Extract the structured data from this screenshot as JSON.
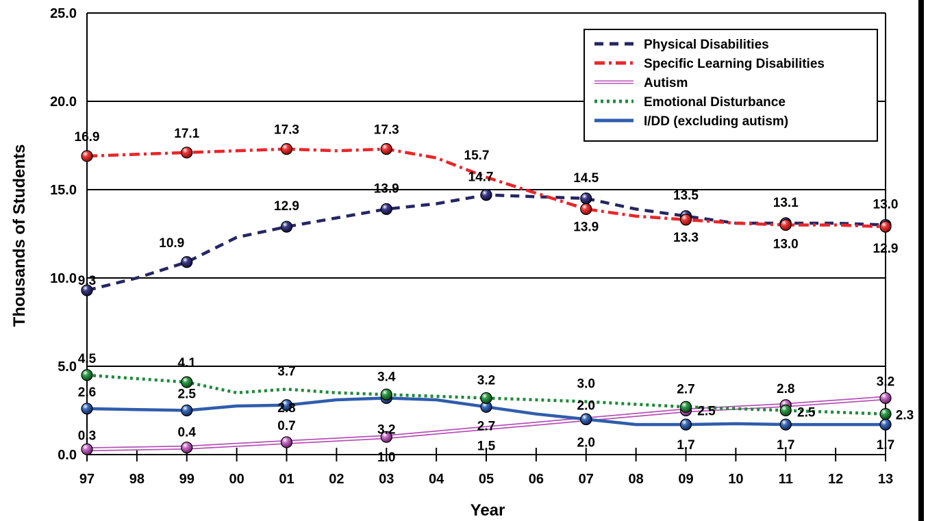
{
  "chart_data": {
    "type": "line",
    "xlabel": "Year",
    "ylabel": "Thousands of Students",
    "ylim": [
      0,
      25
    ],
    "y_ticks": [
      "0.0",
      "5.0",
      "10.0",
      "15.0",
      "20.0",
      "25.0"
    ],
    "categories": [
      "97",
      "98",
      "99",
      "00",
      "01",
      "02",
      "03",
      "04",
      "05",
      "06",
      "07",
      "08",
      "09",
      "10",
      "11",
      "12",
      "13"
    ],
    "grid": "horizontal",
    "legend_position": "top-right",
    "series": [
      {
        "name": "Physical Disabilities",
        "color": "#262662",
        "style": "dashed",
        "values": [
          9.3,
          10.0,
          10.9,
          12.3,
          12.9,
          13.4,
          13.9,
          14.2,
          14.7,
          14.6,
          14.5,
          13.9,
          13.5,
          13.1,
          13.1,
          13.1,
          13.0
        ],
        "markers": [
          {
            "year": "97",
            "value": 9.3,
            "label": "9.3"
          },
          {
            "year": "99",
            "value": 10.9,
            "label": "10.9"
          },
          {
            "year": "01",
            "value": 12.9,
            "label": "12.9"
          },
          {
            "year": "03",
            "value": 13.9,
            "label": "13.9"
          },
          {
            "year": "05",
            "value": 14.7,
            "label": "14.7"
          },
          {
            "year": "07",
            "value": 14.5,
            "label": "14.5"
          },
          {
            "year": "09",
            "value": 13.5,
            "label": "13.5"
          },
          {
            "year": "11",
            "value": 13.1,
            "label": "13.1"
          },
          {
            "year": "13",
            "value": 13.0,
            "label": "13.0"
          }
        ]
      },
      {
        "name": "Specific Learning Disabilities",
        "color": "#e8262a",
        "style": "dash-dot",
        "values": [
          16.9,
          17.0,
          17.1,
          17.2,
          17.3,
          17.2,
          17.3,
          16.8,
          15.7,
          14.8,
          13.9,
          13.5,
          13.3,
          13.1,
          13.0,
          13.0,
          12.9
        ],
        "markers": [
          {
            "year": "97",
            "value": 16.9,
            "label": "16.9"
          },
          {
            "year": "99",
            "value": 17.1,
            "label": "17.1"
          },
          {
            "year": "01",
            "value": 17.3,
            "label": "17.3"
          },
          {
            "year": "03",
            "value": 17.3,
            "label": "17.3"
          },
          {
            "year": "05",
            "value": 15.7,
            "label": "15.7",
            "no_marker": true
          },
          {
            "year": "07",
            "value": 13.9,
            "label": "13.9"
          },
          {
            "year": "09",
            "value": 13.3,
            "label": "13.3"
          },
          {
            "year": "11",
            "value": 13.0,
            "label": "13.0"
          },
          {
            "year": "13",
            "value": 12.9,
            "label": "12.9"
          }
        ]
      },
      {
        "name": "Autism",
        "color": "#b552b5",
        "style": "double",
        "values": [
          0.3,
          0.35,
          0.4,
          0.55,
          0.7,
          0.85,
          1.0,
          1.25,
          1.5,
          1.75,
          2.0,
          2.25,
          2.5,
          2.65,
          2.8,
          3.0,
          3.2
        ],
        "markers": [
          {
            "year": "97",
            "value": 0.3,
            "label": "0.3"
          },
          {
            "year": "99",
            "value": 0.4,
            "label": "0.4"
          },
          {
            "year": "01",
            "value": 0.7,
            "label": "0.7"
          },
          {
            "year": "03",
            "value": 1.0,
            "label": "1.0"
          },
          {
            "year": "05",
            "value": 1.5,
            "label": "1.5",
            "no_marker": true
          },
          {
            "year": "07",
            "value": 2.0,
            "label": "2.0"
          },
          {
            "year": "09",
            "value": 2.5,
            "label": "2.5"
          },
          {
            "year": "11",
            "value": 2.8,
            "label": "2.8"
          },
          {
            "year": "13",
            "value": 3.2,
            "label": "3.2"
          }
        ]
      },
      {
        "name": "Emotional Disturbance",
        "color": "#1e8a3a",
        "style": "dotted",
        "values": [
          4.5,
          4.3,
          4.1,
          3.5,
          3.7,
          3.5,
          3.4,
          3.3,
          3.2,
          3.1,
          3.0,
          2.85,
          2.7,
          2.6,
          2.5,
          2.4,
          2.3
        ],
        "markers": [
          {
            "year": "97",
            "value": 4.5,
            "label": "4.5"
          },
          {
            "year": "99",
            "value": 4.1,
            "label": "4.1"
          },
          {
            "year": "01",
            "value": 3.7,
            "label": "3.7",
            "no_marker": true
          },
          {
            "year": "03",
            "value": 3.4,
            "label": "3.4"
          },
          {
            "year": "05",
            "value": 3.2,
            "label": "3.2"
          },
          {
            "year": "07",
            "value": 3.0,
            "label": "3.0",
            "no_marker": true
          },
          {
            "year": "09",
            "value": 2.7,
            "label": "2.7"
          },
          {
            "year": "11",
            "value": 2.5,
            "label": "2.5"
          },
          {
            "year": "13",
            "value": 2.3,
            "label": "2.3"
          }
        ]
      },
      {
        "name": "I/DD (excluding autism)",
        "color": "#2f5dac",
        "style": "solid",
        "values": [
          2.6,
          2.55,
          2.5,
          2.75,
          2.8,
          3.1,
          3.2,
          3.1,
          2.7,
          2.3,
          2.0,
          1.7,
          1.7,
          1.75,
          1.7,
          1.7,
          1.7
        ],
        "markers": [
          {
            "year": "97",
            "value": 2.6,
            "label": "2.6"
          },
          {
            "year": "99",
            "value": 2.5,
            "label": "2.5"
          },
          {
            "year": "01",
            "value": 2.8,
            "label": "2.8"
          },
          {
            "year": "03",
            "value": 3.2,
            "label": "3.2"
          },
          {
            "year": "05",
            "value": 2.7,
            "label": "2.7"
          },
          {
            "year": "07",
            "value": 2.0,
            "label": "2.0"
          },
          {
            "year": "09",
            "value": 1.7,
            "label": "1.7"
          },
          {
            "year": "11",
            "value": 1.7,
            "label": "1.7"
          },
          {
            "year": "13",
            "value": 1.7,
            "label": "1.7"
          }
        ]
      }
    ]
  }
}
